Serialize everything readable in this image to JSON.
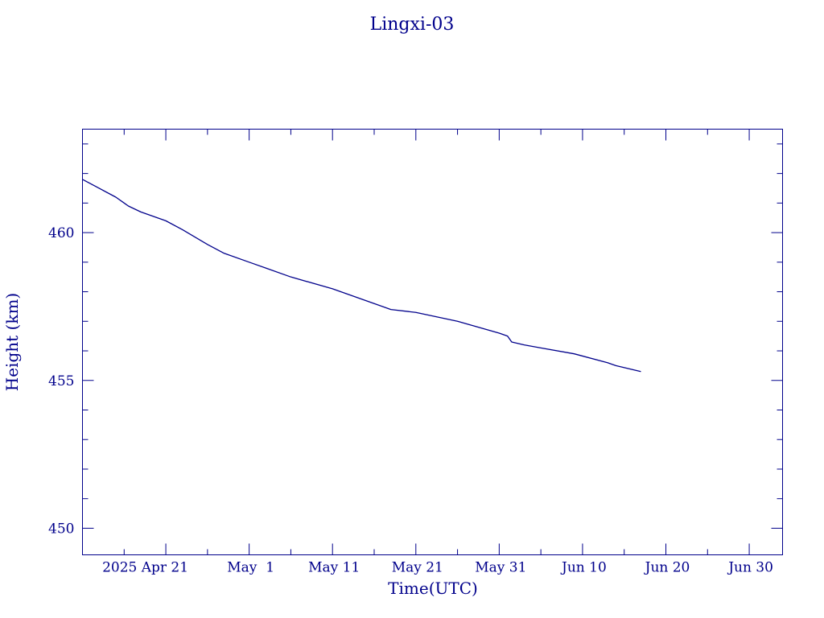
{
  "chart_data": {
    "type": "line",
    "title": "Lingxi-03",
    "xlabel": "Time(UTC)",
    "ylabel": "Height (km)",
    "x_tick_labels": [
      "2025 Apr 21",
      "May  1",
      "May 11",
      "May 21",
      "May 31",
      "Jun 10",
      "Jun 20",
      "Jun 30"
    ],
    "x_tick_dates": [
      "2025-04-21",
      "2025-05-01",
      "2025-05-11",
      "2025-05-21",
      "2025-05-31",
      "2025-06-10",
      "2025-06-20",
      "2025-06-30"
    ],
    "xlim": [
      "2025-04-11",
      "2025-07-04"
    ],
    "ylim": [
      449.1,
      463.5
    ],
    "y_ticks": [
      450,
      455,
      460
    ],
    "y_tick_labels": [
      "450",
      "455",
      "460"
    ],
    "grid": false,
    "color": "#00008b",
    "series": [
      {
        "x": [
          "2025-04-11",
          "2025-04-13",
          "2025-04-15",
          "2025-04-16",
          "2025-04-16T12:00",
          "2025-04-18",
          "2025-04-21",
          "2025-04-23",
          "2025-04-26",
          "2025-04-28",
          "2025-05-01",
          "2025-05-03",
          "2025-05-06",
          "2025-05-11",
          "2025-05-16",
          "2025-05-18",
          "2025-05-21",
          "2025-05-26",
          "2025-05-31",
          "2025-06-01",
          "2025-06-01T12:00",
          "2025-06-03",
          "2025-06-05",
          "2025-06-09",
          "2025-06-13",
          "2025-06-14",
          "2025-06-17"
        ],
        "y": [
          461.8,
          461.5,
          461.2,
          461.0,
          460.9,
          460.7,
          460.4,
          460.1,
          459.6,
          459.3,
          459.0,
          458.8,
          458.5,
          458.1,
          457.6,
          457.4,
          457.3,
          457.0,
          456.6,
          456.5,
          456.3,
          456.2,
          456.1,
          455.9,
          455.6,
          455.5,
          455.3
        ]
      }
    ]
  }
}
